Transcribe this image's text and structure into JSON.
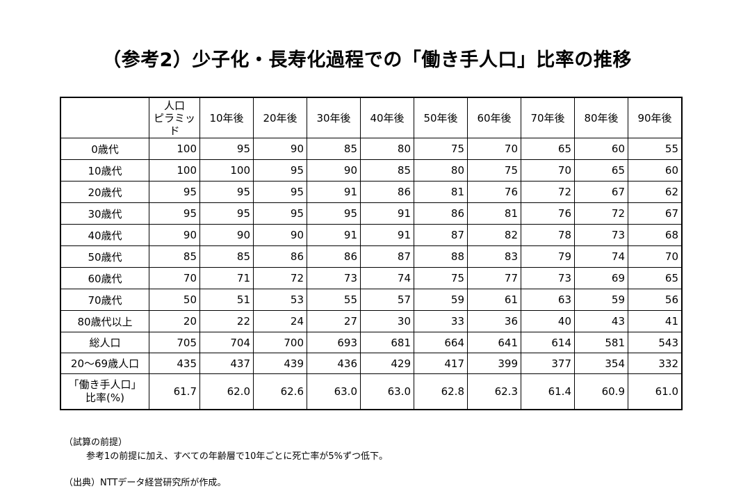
{
  "title": "（参考2）少子化・長寿化過程での「働き手人口」比率の推移",
  "table": {
    "columns": [
      "人口\nピラミッド",
      "10年後",
      "20年後",
      "30年後",
      "40年後",
      "50年後",
      "60年後",
      "70年後",
      "80年後",
      "90年後"
    ],
    "column_pyramid_line1": "人口",
    "column_pyramid_line2": "ピラミッド",
    "years": [
      "10年後",
      "20年後",
      "30年後",
      "40年後",
      "50年後",
      "60年後",
      "70年後",
      "80年後",
      "90年後"
    ],
    "age_rows": [
      {
        "label": "0歳代",
        "values": [
          "100",
          "95",
          "90",
          "85",
          "80",
          "75",
          "70",
          "65",
          "60",
          "55"
        ]
      },
      {
        "label": "10歳代",
        "values": [
          "100",
          "100",
          "95",
          "90",
          "85",
          "80",
          "75",
          "70",
          "65",
          "60"
        ]
      },
      {
        "label": "20歳代",
        "values": [
          "95",
          "95",
          "95",
          "91",
          "86",
          "81",
          "76",
          "72",
          "67",
          "62"
        ]
      },
      {
        "label": "30歳代",
        "values": [
          "95",
          "95",
          "95",
          "95",
          "91",
          "86",
          "81",
          "76",
          "72",
          "67"
        ]
      },
      {
        "label": "40歳代",
        "values": [
          "90",
          "90",
          "90",
          "91",
          "91",
          "87",
          "82",
          "78",
          "73",
          "68"
        ]
      },
      {
        "label": "50歳代",
        "values": [
          "85",
          "85",
          "86",
          "86",
          "87",
          "88",
          "83",
          "79",
          "74",
          "70"
        ]
      },
      {
        "label": "60歳代",
        "values": [
          "70",
          "71",
          "72",
          "73",
          "74",
          "75",
          "77",
          "73",
          "69",
          "65"
        ]
      },
      {
        "label": "70歳代",
        "values": [
          "50",
          "51",
          "53",
          "55",
          "57",
          "59",
          "61",
          "63",
          "59",
          "56"
        ]
      },
      {
        "label": "80歳代以上",
        "values": [
          "20",
          "22",
          "24",
          "27",
          "30",
          "33",
          "36",
          "40",
          "43",
          "41"
        ]
      }
    ],
    "total_row": {
      "label": "総人口",
      "values": [
        "705",
        "704",
        "700",
        "693",
        "681",
        "664",
        "641",
        "614",
        "581",
        "543"
      ]
    },
    "working_row": {
      "label": "20～69歳人口",
      "values": [
        "435",
        "437",
        "439",
        "436",
        "429",
        "417",
        "399",
        "377",
        "354",
        "332"
      ]
    },
    "ratio_row": {
      "label_line1": "「働き手人口」",
      "label_line2": "比率(%)",
      "values": [
        "61.7",
        "62.0",
        "62.6",
        "63.0",
        "63.0",
        "62.8",
        "62.3",
        "61.4",
        "60.9",
        "61.0"
      ]
    }
  },
  "notes": {
    "premise_heading": "（試算の前提）",
    "premise_text": "参考1の前提に加え、すべての年齢層で10年ごとに死亡率が5%ずつ低下。",
    "source": "（出典）NTTデータ経営研究所が作成。"
  }
}
